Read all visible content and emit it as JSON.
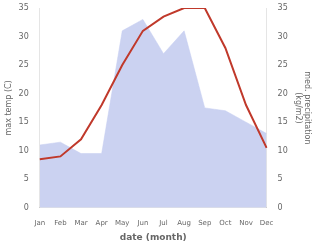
{
  "chart_data": {
    "type": "line",
    "categories": [
      "Jan",
      "Feb",
      "Mar",
      "Apr",
      "May",
      "Jun",
      "Jul",
      "Aug",
      "Sep",
      "Oct",
      "Nov",
      "Dec"
    ],
    "xlabel": "date (month)",
    "ylabel": "max temp (C)",
    "y2label": "med. precipitation\n(kg/m2)",
    "series": [
      {
        "type": "area",
        "color": "#c5cdf0",
        "axis": "y2",
        "values": [
          11.0,
          11.5,
          9.5,
          9.5,
          31.0,
          33.0,
          27.0,
          31.0,
          17.5,
          17.0,
          15.0,
          13.0
        ]
      },
      {
        "type": "line",
        "color": "#c0392b",
        "axis": "y",
        "values": [
          8.5,
          9.0,
          12.0,
          18.0,
          25.0,
          31.0,
          33.5,
          35.0,
          35.0,
          28.0,
          18.0,
          10.5
        ]
      }
    ],
    "ylim": [
      0,
      35
    ],
    "yticks": [
      0,
      5,
      10,
      15,
      20,
      25,
      30,
      35
    ],
    "y2lim": [
      0,
      35
    ],
    "y2ticks": [
      0,
      5,
      10,
      15,
      20,
      25,
      30,
      35
    ],
    "grid": false
  }
}
